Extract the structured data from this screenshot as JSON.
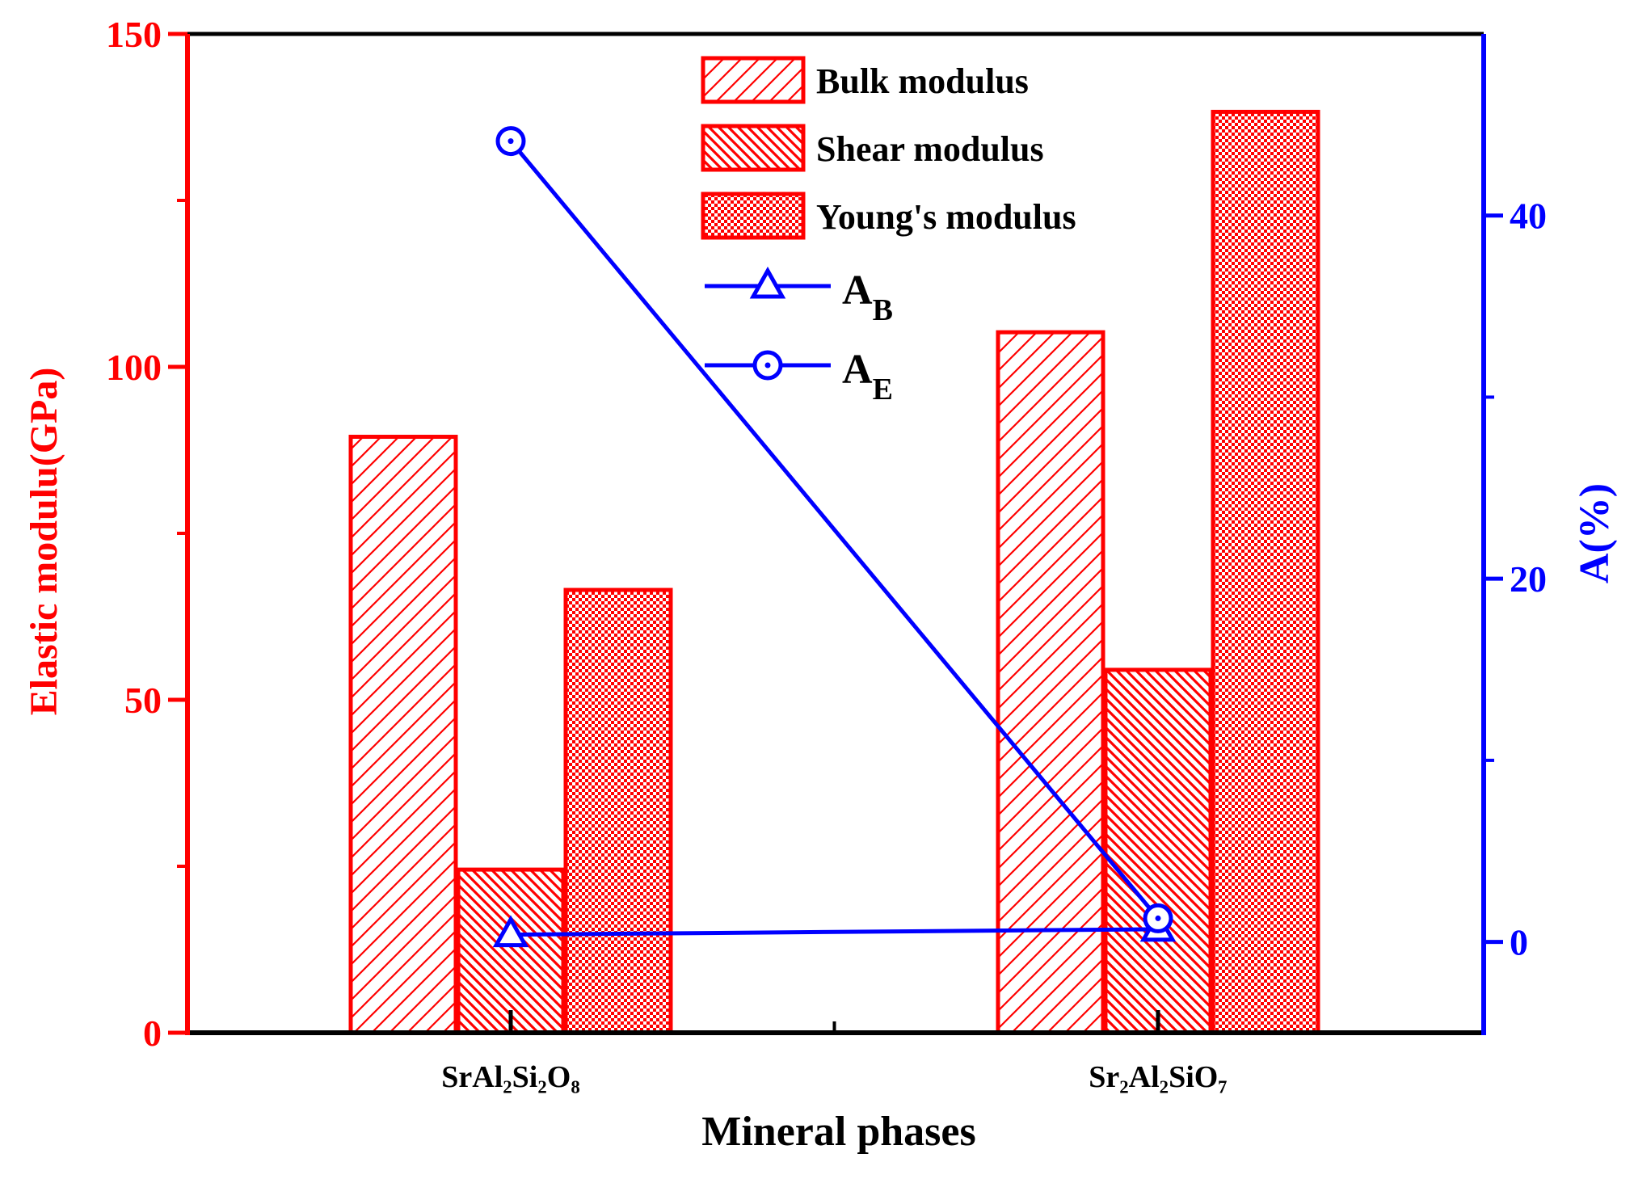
{
  "chart_data": {
    "type": "bar",
    "xlabel": "Mineral phases",
    "ylabel": "Elastic modulu(GPa)",
    "y2label": "A(%)",
    "categories": [
      "SrAl₂Si₂O₈",
      "Sr₂Al₂SiO₇"
    ],
    "ylim": [
      0,
      150
    ],
    "yticks": [
      "0",
      "50",
      "100",
      "150"
    ],
    "y2lim": [
      -5,
      50
    ],
    "y2ticks": [
      "0",
      "20",
      "40"
    ],
    "series": [
      {
        "name": "Bulk modulus",
        "axis": "left",
        "kind": "bar",
        "pattern": "diagonal",
        "values": [
          89.5,
          105.2
        ]
      },
      {
        "name": "Shear modulus",
        "axis": "left",
        "kind": "bar",
        "pattern": "dense-diagonal",
        "values": [
          24.5,
          54.5
        ]
      },
      {
        "name": "Young's modulus",
        "axis": "left",
        "kind": "bar",
        "pattern": "checker",
        "values": [
          66.5,
          138.3
        ]
      },
      {
        "name": "A",
        "sub": "B",
        "axis": "right",
        "kind": "line",
        "marker": "triangle",
        "values": [
          0.4,
          0.7
        ]
      },
      {
        "name": "A",
        "sub": "E",
        "axis": "right",
        "kind": "line",
        "marker": "circle",
        "values": [
          44.1,
          1.3
        ]
      }
    ],
    "colors": {
      "left": "#ff0000",
      "right": "#0000ff",
      "axis": "#000000"
    }
  }
}
